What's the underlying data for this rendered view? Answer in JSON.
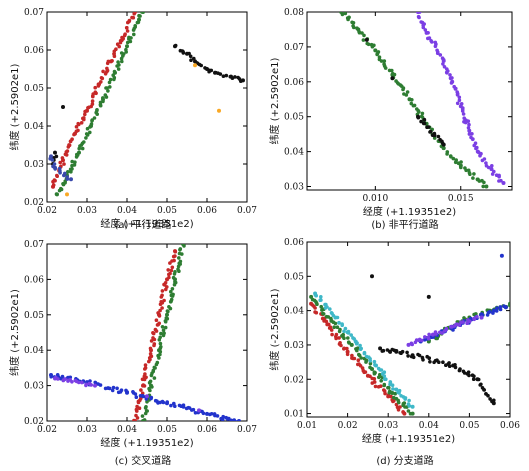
{
  "chart_data": [
    {
      "type": "scatter",
      "caption": "(a) 平行道路",
      "xlabel": "经度 (+1.19351e2)",
      "ylabel": "纬度 (+2.5902e1)",
      "xlim": [
        0.02,
        0.07
      ],
      "ylim": [
        0.02,
        0.07
      ],
      "xticks": [
        "0.02",
        "0.03",
        "0.04",
        "0.05",
        "0.06",
        "0.07"
      ],
      "yticks": [
        "0.02",
        "0.03",
        "0.04",
        "0.05",
        "0.06",
        "0.07"
      ],
      "series": [
        {
          "color": "#c62828",
          "values": [
            [
              0.0215,
              0.024
            ],
            [
              0.024,
              0.031
            ],
            [
              0.027,
              0.038
            ],
            [
              0.03,
              0.044
            ],
            [
              0.033,
              0.051
            ],
            [
              0.036,
              0.057
            ],
            [
              0.039,
              0.063
            ],
            [
              0.042,
              0.07
            ]
          ]
        },
        {
          "color": "#2e7d32",
          "values": [
            [
              0.0225,
              0.022
            ],
            [
              0.025,
              0.027
            ],
            [
              0.028,
              0.033
            ],
            [
              0.031,
              0.04
            ],
            [
              0.034,
              0.047
            ],
            [
              0.037,
              0.054
            ],
            [
              0.04,
              0.061
            ],
            [
              0.043,
              0.068
            ],
            [
              0.044,
              0.07
            ]
          ]
        },
        {
          "color": "#111111",
          "values": [
            [
              0.0215,
              0.03
            ],
            [
              0.022,
              0.033
            ],
            [
              0.024,
              0.045
            ],
            [
              0.052,
              0.061
            ],
            [
              0.055,
              0.059
            ],
            [
              0.057,
              0.057
            ],
            [
              0.06,
              0.055
            ],
            [
              0.062,
              0.054
            ],
            [
              0.066,
              0.053
            ],
            [
              0.069,
              0.052
            ]
          ]
        },
        {
          "color": "#3949ab",
          "values": [
            [
              0.021,
              0.032
            ],
            [
              0.022,
              0.029
            ],
            [
              0.026,
              0.026
            ]
          ]
        },
        {
          "color": "#f9a825",
          "values": [
            [
              0.025,
              0.022
            ],
            [
              0.057,
              0.056
            ],
            [
              0.063,
              0.044
            ]
          ]
        }
      ]
    },
    {
      "type": "scatter",
      "caption": "(b) 非平行道路",
      "xlabel": "经度 (+1.19351e2)",
      "ylabel": "纬度 (+2.5902e1)",
      "xlim": [
        0.006,
        0.018
      ],
      "ylim": [
        0.029,
        0.08
      ],
      "xticks": [
        "0.010",
        "0.015"
      ],
      "yticks": [
        "0.03",
        "0.04",
        "0.05",
        "0.06",
        "0.07",
        "0.08"
      ],
      "series": [
        {
          "color": "#2e7d32",
          "values": [
            [
              0.008,
              0.08
            ],
            [
              0.009,
              0.075
            ],
            [
              0.01,
              0.069
            ],
            [
              0.011,
              0.062
            ],
            [
              0.012,
              0.055
            ],
            [
              0.013,
              0.048
            ],
            [
              0.014,
              0.041
            ],
            [
              0.015,
              0.036
            ],
            [
              0.016,
              0.032
            ],
            [
              0.0165,
              0.03
            ]
          ]
        },
        {
          "color": "#7b3fe4",
          "values": [
            [
              0.0125,
              0.08
            ],
            [
              0.013,
              0.074
            ],
            [
              0.014,
              0.066
            ],
            [
              0.0145,
              0.06
            ],
            [
              0.015,
              0.053
            ],
            [
              0.0155,
              0.046
            ],
            [
              0.016,
              0.04
            ],
            [
              0.0168,
              0.035
            ],
            [
              0.0175,
              0.031
            ]
          ]
        },
        {
          "color": "#111111",
          "values": [
            [
              0.0095,
              0.072
            ],
            [
              0.011,
              0.061
            ],
            [
              0.0125,
              0.05
            ],
            [
              0.014,
              0.042
            ]
          ]
        }
      ]
    },
    {
      "type": "scatter",
      "caption": "(c) 交叉道路",
      "xlabel": "经度 (+1.19351e2)",
      "ylabel": "纬度 (+2.5902e1)",
      "xlim": [
        0.02,
        0.07
      ],
      "ylim": [
        0.02,
        0.07
      ],
      "xticks": [
        "0.02",
        "0.03",
        "0.04",
        "0.05",
        "0.06",
        "0.07"
      ],
      "yticks": [
        "0.02",
        "0.03",
        "0.04",
        "0.05",
        "0.06",
        "0.07"
      ],
      "series": [
        {
          "color": "#c62828",
          "values": [
            [
              0.042,
              0.02
            ],
            [
              0.044,
              0.03
            ],
            [
              0.046,
              0.04
            ],
            [
              0.048,
              0.05
            ],
            [
              0.05,
              0.06
            ],
            [
              0.052,
              0.068
            ]
          ]
        },
        {
          "color": "#2e7d32",
          "values": [
            [
              0.044,
              0.02
            ],
            [
              0.046,
              0.03
            ],
            [
              0.048,
              0.04
            ],
            [
              0.05,
              0.05
            ],
            [
              0.052,
              0.06
            ],
            [
              0.054,
              0.07
            ]
          ]
        },
        {
          "color": "#2233cc",
          "values": [
            [
              0.021,
              0.033
            ],
            [
              0.03,
              0.031
            ],
            [
              0.04,
              0.028
            ],
            [
              0.05,
              0.025
            ],
            [
              0.06,
              0.022
            ],
            [
              0.068,
              0.02
            ]
          ]
        },
        {
          "color": "#7b3fe4",
          "values": [
            [
              0.022,
              0.032
            ],
            [
              0.032,
              0.03
            ],
            [
              0.045,
              0.027
            ],
            [
              0.058,
              0.023
            ]
          ]
        }
      ]
    },
    {
      "type": "scatter",
      "caption": "(d) 分支道路",
      "xlabel": "经度 (+1.19351e2)",
      "ylabel": "纬度 (-2.5902e1)",
      "xlim": [
        0.01,
        0.06
      ],
      "ylim": [
        0.009,
        0.06
      ],
      "xticks": [
        "0.01",
        "0.02",
        "0.03",
        "0.04",
        "0.05",
        "0.06"
      ],
      "yticks": [
        "0.01",
        "0.02",
        "0.03",
        "0.04",
        "0.05",
        "0.06"
      ],
      "series": [
        {
          "color": "#c62828",
          "values": [
            [
              0.011,
              0.042
            ],
            [
              0.015,
              0.036
            ],
            [
              0.02,
              0.028
            ],
            [
              0.025,
              0.021
            ],
            [
              0.03,
              0.015
            ],
            [
              0.034,
              0.01
            ]
          ]
        },
        {
          "color": "#2e7d32",
          "values": [
            [
              0.011,
              0.044
            ],
            [
              0.016,
              0.037
            ],
            [
              0.021,
              0.03
            ],
            [
              0.026,
              0.023
            ],
            [
              0.031,
              0.016
            ],
            [
              0.036,
              0.01
            ],
            [
              0.04,
              0.031
            ],
            [
              0.045,
              0.035
            ],
            [
              0.05,
              0.038
            ],
            [
              0.055,
              0.04
            ],
            [
              0.06,
              0.042
            ]
          ]
        },
        {
          "color": "#3fb8c8",
          "values": [
            [
              0.012,
              0.045
            ],
            [
              0.017,
              0.038
            ],
            [
              0.022,
              0.031
            ],
            [
              0.027,
              0.024
            ],
            [
              0.032,
              0.017
            ],
            [
              0.036,
              0.012
            ]
          ]
        },
        {
          "color": "#2233cc",
          "values": [
            [
              0.038,
              0.031
            ],
            [
              0.044,
              0.034
            ],
            [
              0.05,
              0.037
            ],
            [
              0.056,
              0.04
            ],
            [
              0.059,
              0.041
            ],
            [
              0.058,
              0.056
            ]
          ]
        },
        {
          "color": "#7b3fe4",
          "values": [
            [
              0.035,
              0.03
            ],
            [
              0.041,
              0.033
            ],
            [
              0.047,
              0.036
            ],
            [
              0.053,
              0.038
            ]
          ]
        },
        {
          "color": "#111111",
          "values": [
            [
              0.028,
              0.029
            ],
            [
              0.032,
              0.028
            ],
            [
              0.036,
              0.027
            ],
            [
              0.046,
              0.024
            ],
            [
              0.052,
              0.02
            ],
            [
              0.056,
              0.013
            ],
            [
              0.026,
              0.05
            ],
            [
              0.04,
              0.044
            ]
          ]
        }
      ]
    }
  ]
}
